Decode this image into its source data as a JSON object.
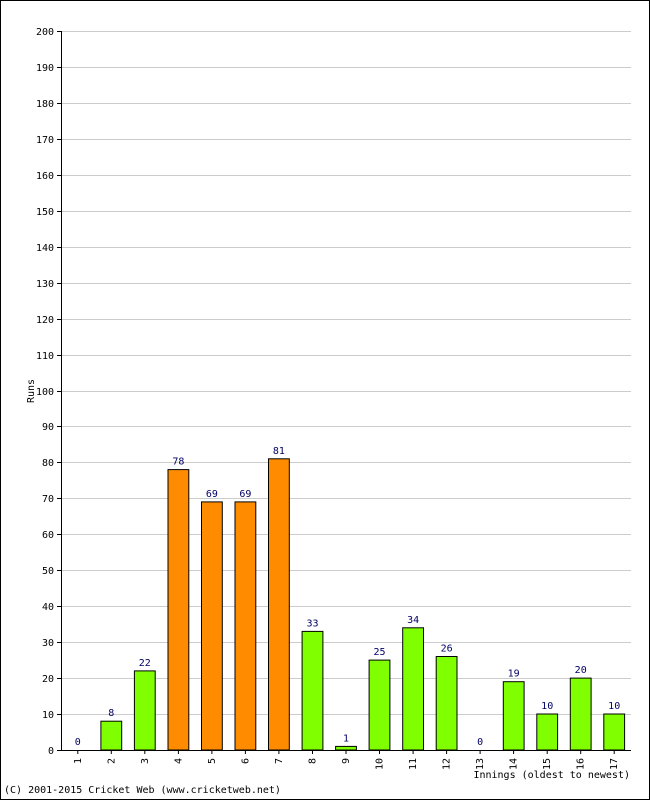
{
  "chart_data": {
    "type": "bar",
    "categories": [
      "1",
      "2",
      "3",
      "4",
      "5",
      "6",
      "7",
      "8",
      "9",
      "10",
      "11",
      "12",
      "13",
      "14",
      "15",
      "16",
      "17"
    ],
    "values": [
      0,
      8,
      22,
      78,
      69,
      69,
      81,
      33,
      1,
      25,
      34,
      26,
      0,
      19,
      10,
      20,
      10
    ],
    "value_labels": [
      "0",
      "8",
      "22",
      "78",
      "69",
      "69",
      "81",
      "33",
      "1",
      "25",
      "34",
      "26",
      "0",
      "19",
      "10",
      "20",
      "10"
    ],
    "highlight": [
      false,
      false,
      false,
      true,
      true,
      true,
      true,
      false,
      false,
      false,
      false,
      false,
      false,
      false,
      false,
      false,
      false
    ],
    "ylabel": "Runs",
    "xlabel": "Innings (oldest to newest)",
    "ylim": [
      0,
      200
    ],
    "ytick_step": 10,
    "grid": true,
    "colors": {
      "normal": "#80ff00",
      "highlight": "#ff8c00",
      "value_text": "#000066",
      "grid": "#cccccc"
    }
  },
  "footer": {
    "copyright": "(C) 2001-2015 Cricket Web (www.cricketweb.net)"
  }
}
